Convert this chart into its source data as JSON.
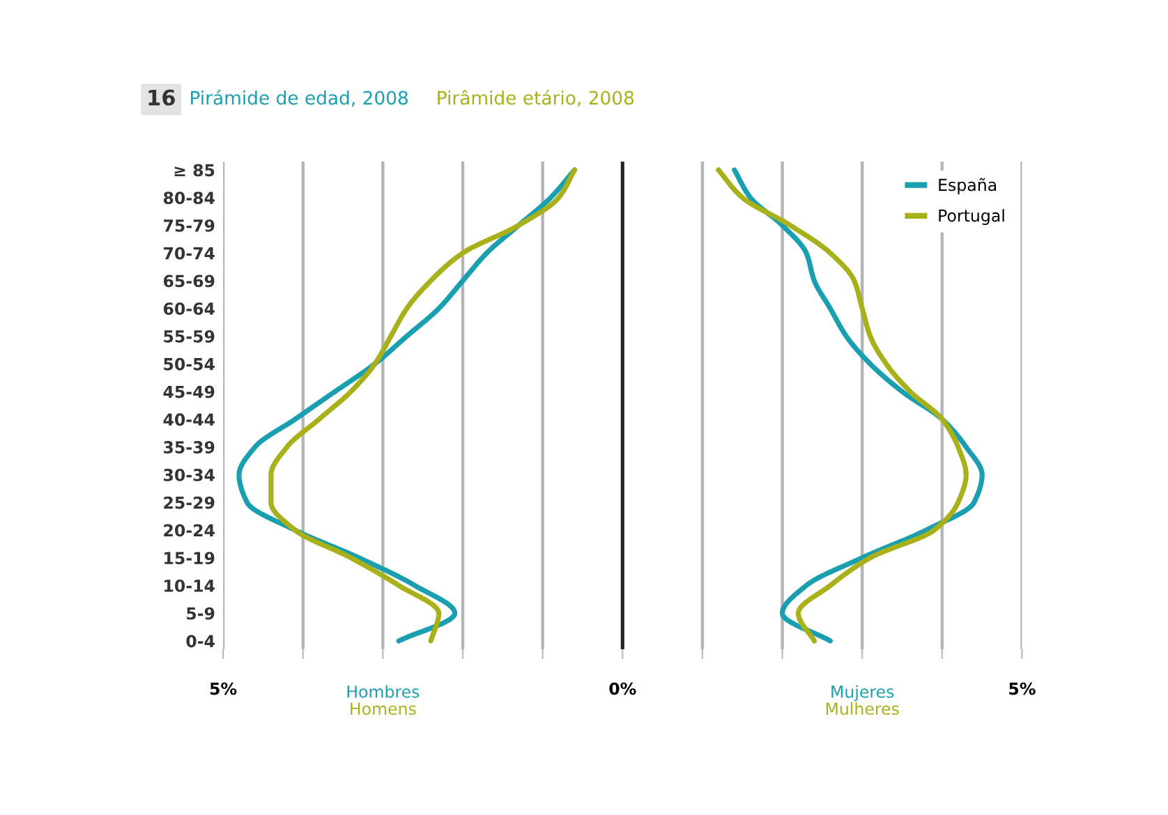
{
  "chart_data": {
    "type": "line",
    "orientation": "horizontal",
    "title": "Pirámide de edad, 2008",
    "subtitle": "Pirâmide etário, 2008",
    "annotations": [
      "16",
      "Hombres",
      "Homens",
      "Mujeres",
      "Mulheres"
    ],
    "categories": [
      "≥ 85",
      "80-84",
      "75-79",
      "70-74",
      "65-69",
      "60-64",
      "55-59",
      "50-54",
      "45-49",
      "40-44",
      "35-39",
      "30-34",
      "25-29",
      "20-24",
      "15-19",
      "10-14",
      "5-9",
      "0-4"
    ],
    "series": [
      {
        "name": "España",
        "color": "#1a9fb0",
        "values": [
          -0.6,
          -0.9,
          -1.3,
          -1.7,
          -2.0,
          -2.3,
          -2.7,
          -3.1,
          -3.6,
          -4.1,
          -4.6,
          -4.8,
          -4.7,
          -4.1,
          -3.3,
          -2.6,
          -2.1,
          -2.8
        ]
      },
      {
        "name": "Portugal",
        "color": "#a8b01a",
        "values": [
          -0.6,
          -0.8,
          -1.3,
          -2.0,
          -2.4,
          -2.7,
          -2.9,
          -3.1,
          -3.4,
          -3.8,
          -4.2,
          -4.4,
          -4.4,
          -4.1,
          -3.4,
          -2.8,
          -2.3,
          -2.4
        ]
      },
      {
        "color": "#1a9fb0",
        "values": [
          1.4,
          1.6,
          2.0,
          2.3,
          2.4,
          2.6,
          2.8,
          3.1,
          3.5,
          4.0,
          4.3,
          4.5,
          4.4,
          3.8,
          3.0,
          2.3,
          2.0,
          2.6
        ]
      },
      {
        "color": "#a8b01a",
        "values": [
          1.2,
          1.5,
          2.1,
          2.6,
          2.9,
          3.0,
          3.1,
          3.3,
          3.6,
          4.0,
          4.2,
          4.3,
          4.2,
          3.9,
          3.1,
          2.6,
          2.2,
          2.4
        ]
      }
    ],
    "xlim": [
      -5,
      5
    ],
    "xticks": [
      {
        "value": -5,
        "label": "5%"
      },
      {
        "value": -4,
        "label": null
      },
      {
        "value": -3,
        "label": null
      },
      {
        "value": -2,
        "label": null
      },
      {
        "value": -1,
        "label": null
      },
      {
        "value": 0,
        "label": "0%"
      },
      {
        "value": 1,
        "label": null
      },
      {
        "value": 2,
        "label": null
      },
      {
        "value": 3,
        "label": null
      },
      {
        "value": 4,
        "label": null
      },
      {
        "value": 5,
        "label": "5%"
      }
    ],
    "ref_lines": [
      {
        "axis": "x",
        "value": 0,
        "color": "#222222"
      }
    ],
    "grid": "x",
    "legend": "top right",
    "marker": "none",
    "line_style": "solid"
  }
}
